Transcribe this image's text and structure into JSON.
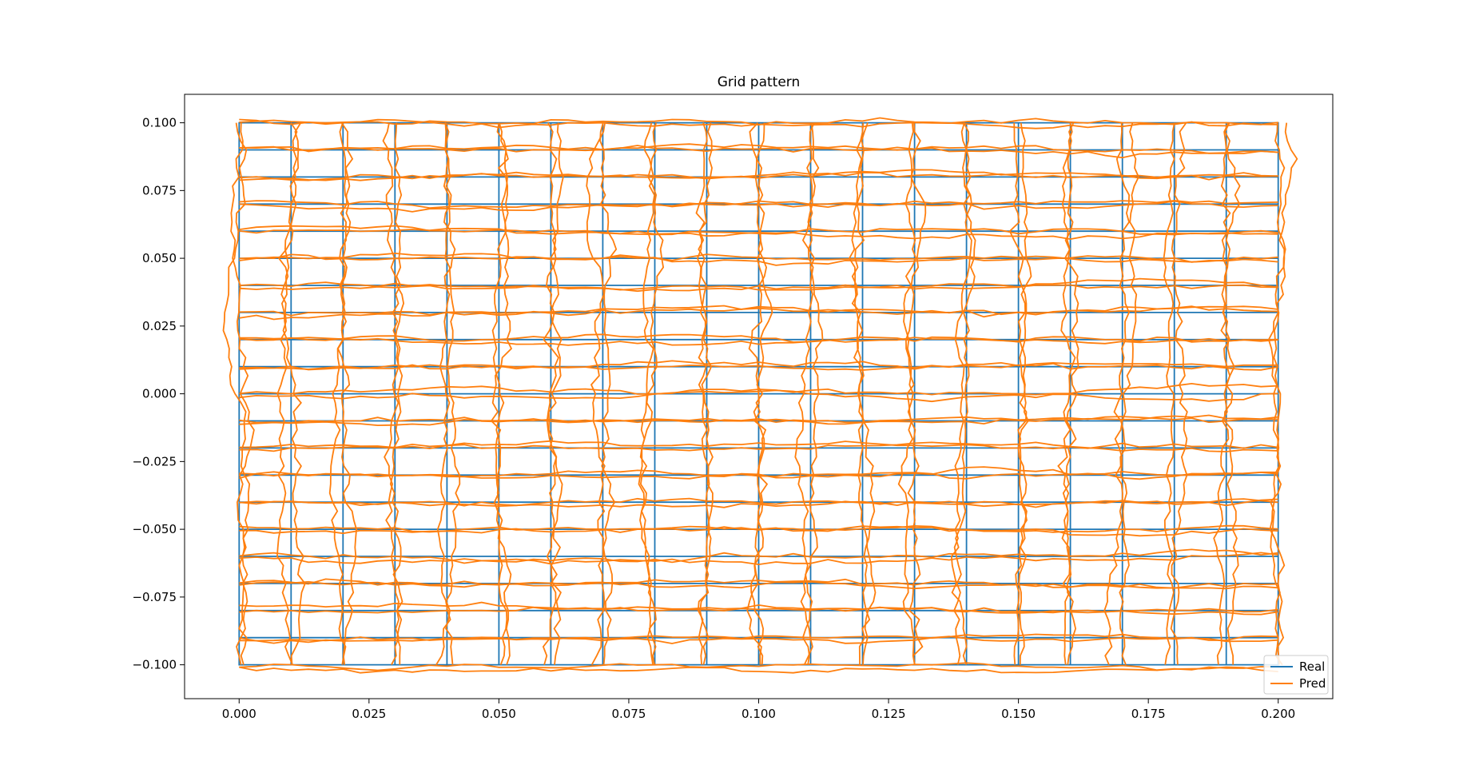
{
  "chart_data": {
    "type": "line",
    "title": "Grid pattern",
    "xlabel": "",
    "ylabel": "",
    "xlim": [
      -0.0105,
      0.2105
    ],
    "ylim": [
      -0.1125,
      0.1105
    ],
    "x_ticks": [
      0.0,
      0.025,
      0.05,
      0.075,
      0.1,
      0.125,
      0.15,
      0.175,
      0.2
    ],
    "x_tick_labels": [
      "0.000",
      "0.025",
      "0.050",
      "0.075",
      "0.100",
      "0.125",
      "0.150",
      "0.175",
      "0.200"
    ],
    "y_ticks": [
      0.1,
      0.075,
      0.05,
      0.025,
      0.0,
      -0.025,
      -0.05,
      -0.075,
      -0.1
    ],
    "y_tick_labels": [
      "0.100",
      "0.075",
      "0.050",
      "0.025",
      "0.000",
      "−0.025",
      "−0.050",
      "−0.075",
      "−0.100"
    ],
    "grid": false,
    "legend_position": "lower-right",
    "series": [
      {
        "name": "Real",
        "color": "#1f77b4",
        "description_grid": {
          "x_min": 0.0,
          "x_max": 0.2,
          "x_step": 0.01,
          "y_min": -0.1,
          "y_max": 0.1,
          "y_step": 0.01
        }
      },
      {
        "name": "Pred",
        "color": "#ff7f0e",
        "noise_std": 0.0012
      }
    ]
  }
}
